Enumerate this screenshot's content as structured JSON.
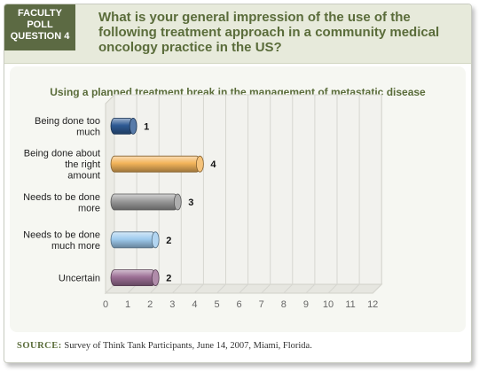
{
  "header": {
    "badge_lines": [
      "FACULTY",
      "POLL",
      "QUESTION 4"
    ],
    "question": "What is your general impression of the use of the following treatment approach in a community medical oncology practice in the US?"
  },
  "chart_data": {
    "type": "bar",
    "orientation": "horizontal",
    "title": "Using a planned treatment break in the management of metastatic disease",
    "categories": [
      [
        "Being done too",
        "much"
      ],
      [
        "Being done about",
        "the right",
        "amount"
      ],
      [
        "Needs to be done",
        "more"
      ],
      [
        "Needs to be done",
        "much more"
      ],
      [
        "Uncertain"
      ]
    ],
    "values": [
      1,
      4,
      3,
      2,
      2
    ],
    "value_labels": [
      "1",
      "4",
      "3",
      "2",
      "2"
    ],
    "bar_colors": [
      "#2e5a94",
      "#f3b45a",
      "#9a9a9a",
      "#9fcbee",
      "#9c6f95"
    ],
    "xlim": [
      0,
      12
    ],
    "xticks": [
      "0",
      "1",
      "2",
      "3",
      "4",
      "5",
      "6",
      "7",
      "8",
      "9",
      "10",
      "11",
      "12"
    ],
    "grid": true
  },
  "footer": {
    "source_key": "SOURCE:",
    "source_text": "Survey of Think Tank Participants, June 14, 2007, Miami, Florida."
  }
}
